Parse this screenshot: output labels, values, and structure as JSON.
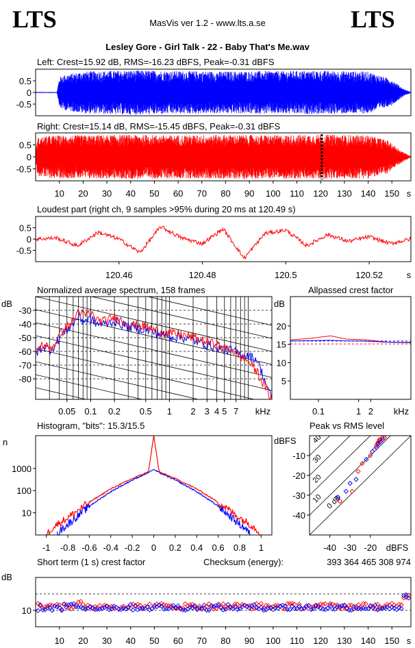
{
  "header": {
    "logo_left": "LTS",
    "logo_right": "LTS",
    "app_version": "MasVis ver 1.2 - www.lts.a.se",
    "file_title": "Lesley Gore - Girl Talk - 22 - Baby That's Me.wav"
  },
  "colors": {
    "left": "#0000ff",
    "right": "#ff0000",
    "axes": "#000000",
    "marker": "#000000"
  },
  "chart_data": [
    {
      "id": "waveform-left",
      "type": "line",
      "title": "Left: Crest=15.92 dB, RMS=-16.23 dBFS, Peak=-0.31 dBFS",
      "xlim": [
        0,
        158
      ],
      "ylim": [
        -1,
        1
      ],
      "yticks": [
        0.5,
        0,
        -0.5
      ],
      "ytick_labels": [
        "0.5",
        "0",
        "-0.5"
      ],
      "series": [
        {
          "color": "blue",
          "envelope_t": [
            0,
            9,
            10,
            12,
            20,
            40,
            60,
            80,
            100,
            120,
            140,
            150,
            155,
            158
          ],
          "envelope_amp": [
            0.02,
            0.02,
            0.65,
            0.75,
            0.9,
            0.95,
            0.92,
            0.9,
            0.92,
            0.93,
            0.9,
            0.55,
            0.15,
            0.02
          ]
        }
      ]
    },
    {
      "id": "waveform-right",
      "type": "line",
      "title": "Right: Crest=15.14 dB, RMS=-15.45 dBFS, Peak=-0.31 dBFS",
      "xlim": [
        0,
        158
      ],
      "ylim": [
        -1,
        1
      ],
      "yticks": [
        0.5,
        0,
        -0.5
      ],
      "ytick_labels": [
        "0.5",
        "0",
        "-0.5"
      ],
      "xticks": [
        10,
        20,
        30,
        40,
        50,
        60,
        70,
        80,
        90,
        100,
        110,
        120,
        130,
        140,
        150
      ],
      "xtick_labels": [
        "10",
        "20",
        "30",
        "40",
        "50",
        "60",
        "70",
        "80",
        "90",
        "100",
        "110",
        "120",
        "130",
        "140",
        "150"
      ],
      "xunit": "s",
      "marker_x": 120.49,
      "series": [
        {
          "color": "red",
          "envelope_t": [
            0,
            1,
            5,
            20,
            40,
            60,
            80,
            100,
            120,
            140,
            148,
            154,
            158
          ],
          "envelope_amp": [
            0.3,
            0.8,
            0.88,
            0.9,
            0.92,
            0.9,
            0.92,
            0.9,
            0.93,
            0.9,
            0.7,
            0.25,
            0.02
          ]
        }
      ]
    },
    {
      "id": "loudest-part",
      "type": "line",
      "title": "Loudest part (right ch, 9 samples >95% during 20 ms at 120.49 s)",
      "xlim": [
        120.44,
        120.53
      ],
      "ylim": [
        -1,
        1
      ],
      "yticks": [
        0.5,
        0,
        -0.5
      ],
      "ytick_labels": [
        "0.5",
        "0",
        "-0.5"
      ],
      "xticks": [
        120.46,
        120.48,
        120.5,
        120.52
      ],
      "xtick_labels": [
        "120.46",
        "120.48",
        "120.5",
        "120.52"
      ],
      "xunit": "s",
      "series": [
        {
          "color": "red",
          "x": [
            120.44,
            120.445,
            120.45,
            120.455,
            120.46,
            120.465,
            120.47,
            120.475,
            120.48,
            120.485,
            120.49,
            120.495,
            120.5,
            120.505,
            120.51,
            120.515,
            120.52,
            120.525,
            120.53
          ],
          "y": [
            0.0,
            0.05,
            -0.3,
            0.3,
            0.0,
            -0.6,
            0.55,
            0.05,
            -0.2,
            0.45,
            -0.85,
            0.25,
            0.4,
            -0.3,
            0.2,
            -0.1,
            0.1,
            -0.2,
            0.0
          ]
        }
      ]
    },
    {
      "id": "avg-spectrum",
      "type": "line",
      "title": "Normalized average spectrum, 158 frames",
      "ylabel": "dB",
      "xunit": "kHz",
      "xlim": [
        0.02,
        20
      ],
      "xscale": "log",
      "ylim": [
        -95,
        -20
      ],
      "yticks": [
        -30,
        -40,
        -50,
        -60,
        -70,
        -80
      ],
      "ytick_labels": [
        "-30",
        "-40",
        "-50",
        "-60",
        "-70",
        "-80"
      ],
      "xticks": [
        0.05,
        0.1,
        0.2,
        0.5,
        1,
        2,
        3,
        4,
        5,
        7
      ],
      "xtick_labels": [
        "0.05",
        "0.1",
        "0.2",
        "0.5",
        "1",
        "2",
        "3",
        "4",
        "5",
        "7"
      ],
      "series": [
        {
          "color": "red",
          "x": [
            0.02,
            0.025,
            0.03,
            0.035,
            0.04,
            0.05,
            0.06,
            0.07,
            0.08,
            0.1,
            0.12,
            0.15,
            0.2,
            0.3,
            0.5,
            0.7,
            1,
            1.5,
            2,
            3,
            4,
            5,
            6,
            8,
            10,
            13,
            16,
            20
          ],
          "y": [
            -60,
            -55,
            -58,
            -55,
            -48,
            -42,
            -38,
            -30,
            -34,
            -32,
            -37,
            -38,
            -35,
            -40,
            -42,
            -45,
            -47,
            -48,
            -50,
            -53,
            -55,
            -58,
            -58,
            -64,
            -67,
            -75,
            -85,
            -95
          ]
        },
        {
          "color": "blue",
          "x": [
            0.02,
            0.025,
            0.03,
            0.035,
            0.04,
            0.05,
            0.06,
            0.07,
            0.08,
            0.1,
            0.12,
            0.15,
            0.2,
            0.3,
            0.5,
            0.7,
            1,
            1.5,
            2,
            3,
            4,
            5,
            6,
            8,
            10,
            13,
            16,
            20
          ],
          "y": [
            -62,
            -56,
            -59,
            -56,
            -50,
            -44,
            -40,
            -34,
            -38,
            -36,
            -40,
            -40,
            -38,
            -42,
            -44,
            -47,
            -49,
            -50,
            -52,
            -55,
            -57,
            -59,
            -59,
            -62,
            -63,
            -66,
            -80,
            -95
          ]
        }
      ]
    },
    {
      "id": "allpassed-crest",
      "type": "line",
      "title": "Allpassed crest factor",
      "ylabel": "dB",
      "xunit": "kHz",
      "xlim": [
        0.02,
        20
      ],
      "xscale": "log",
      "ylim": [
        0,
        28
      ],
      "yticks": [
        20,
        15,
        10,
        5
      ],
      "ytick_labels": [
        "20",
        "15",
        "10",
        "5"
      ],
      "xticks": [
        0.1,
        1,
        2
      ],
      "xtick_labels": [
        "0.1",
        "1",
        "2"
      ],
      "reference_dashed": [
        15.9,
        15.1
      ],
      "series": [
        {
          "color": "red",
          "x": [
            0.02,
            0.06,
            0.2,
            0.5,
            1,
            2,
            5,
            20
          ],
          "y": [
            16.2,
            16.6,
            17.3,
            16.4,
            16.3,
            16.1,
            15.6,
            15.4
          ]
        },
        {
          "color": "blue",
          "x": [
            0.02,
            0.06,
            0.2,
            0.5,
            1,
            2,
            5,
            20
          ],
          "y": [
            15.9,
            16.0,
            16.1,
            15.9,
            15.9,
            15.8,
            15.6,
            15.5
          ]
        }
      ]
    },
    {
      "id": "histogram",
      "type": "line",
      "title": "Histogram, \"bits\": 15.3/15.5",
      "ylabel": "n",
      "yscale": "log",
      "xlim": [
        -1.1,
        1.1
      ],
      "ylim": [
        1,
        30000
      ],
      "yticks": [
        1000,
        100,
        10
      ],
      "ytick_labels": [
        "1000",
        "100",
        "10"
      ],
      "xticks": [
        -1,
        -0.8,
        -0.6,
        -0.4,
        -0.2,
        0,
        0.2,
        0.4,
        0.6,
        0.8,
        1
      ],
      "xtick_labels": [
        "-1",
        "-0.8",
        "-0.6",
        "-0.4",
        "-0.2",
        "0",
        "0.2",
        "0.4",
        "0.6",
        "0.8",
        "1"
      ],
      "series": [
        {
          "color": "red",
          "x": [
            -1,
            -0.95,
            -0.9,
            -0.8,
            -0.6,
            -0.4,
            -0.2,
            -0.05,
            0,
            0.05,
            0.2,
            0.4,
            0.6,
            0.8,
            0.9,
            0.95,
            1
          ],
          "y": [
            1,
            2,
            3,
            6,
            30,
            120,
            350,
            700,
            30000,
            700,
            350,
            120,
            30,
            6,
            3,
            2,
            1
          ]
        },
        {
          "color": "blue",
          "x": [
            -0.9,
            -0.85,
            -0.8,
            -0.6,
            -0.4,
            -0.2,
            -0.05,
            0,
            0.05,
            0.2,
            0.4,
            0.6,
            0.8,
            0.85,
            0.9
          ],
          "y": [
            1,
            2,
            3,
            20,
            90,
            300,
            650,
            900,
            650,
            300,
            90,
            20,
            3,
            2,
            1
          ]
        }
      ]
    },
    {
      "id": "peak-vs-rms",
      "type": "scatter",
      "title": "Peak vs RMS level",
      "ylabel": "dBFS",
      "xunit": "dBFS",
      "xlim": [
        -50,
        0
      ],
      "ylim": [
        -50,
        0
      ],
      "yticks": [
        -10,
        -20,
        -30,
        -40
      ],
      "ytick_labels": [
        "-10",
        "-20",
        "-30",
        "-40"
      ],
      "xticks": [
        -40,
        -30,
        -20
      ],
      "xtick_labels": [
        "-40",
        "-30",
        "-20"
      ],
      "crest_lines": [
        0,
        10,
        20,
        30,
        40
      ],
      "crest_labels": [
        "0 dB",
        "10",
        "20",
        "30",
        "40"
      ],
      "series": [
        {
          "color": "red",
          "x": [
            -35,
            -29,
            -26,
            -24,
            -20,
            -18,
            -17,
            -16.5,
            -16,
            -15.5,
            -15,
            -14,
            -13
          ],
          "y": [
            -33,
            -28,
            -18,
            -14,
            -10,
            -7,
            -5,
            -4,
            -3,
            -2,
            -2,
            -1,
            -1
          ]
        },
        {
          "color": "blue",
          "x": [
            -36,
            -32,
            -30,
            -27,
            -22,
            -19,
            -17,
            -16,
            -15,
            -14
          ],
          "y": [
            -31,
            -28,
            -24,
            -22,
            -12,
            -8,
            -6,
            -4,
            -3,
            -2
          ]
        }
      ]
    },
    {
      "id": "short-term-crest",
      "type": "scatter",
      "title": "Short term (1 s) crest factor",
      "ylabel": "dB",
      "xunit": "s",
      "checksum_label": "Checksum (energy):",
      "checksum_value": "393 364 465 308 974",
      "xlim": [
        0,
        158
      ],
      "ylim": [
        0,
        30
      ],
      "yticks": [
        10
      ],
      "ytick_labels": [
        "10"
      ],
      "dashed_y": [
        10,
        20
      ],
      "xticks": [
        10,
        20,
        30,
        40,
        50,
        60,
        70,
        80,
        90,
        100,
        110,
        120,
        130,
        140,
        150
      ],
      "xtick_labels": [
        "10",
        "20",
        "30",
        "40",
        "50",
        "60",
        "70",
        "80",
        "90",
        "100",
        "110",
        "120",
        "130",
        "140",
        "150"
      ],
      "series": [
        {
          "color": "red",
          "base": 12.5,
          "spread": 1.8
        },
        {
          "color": "blue",
          "base": 11.8,
          "spread": 1.8
        }
      ]
    }
  ]
}
